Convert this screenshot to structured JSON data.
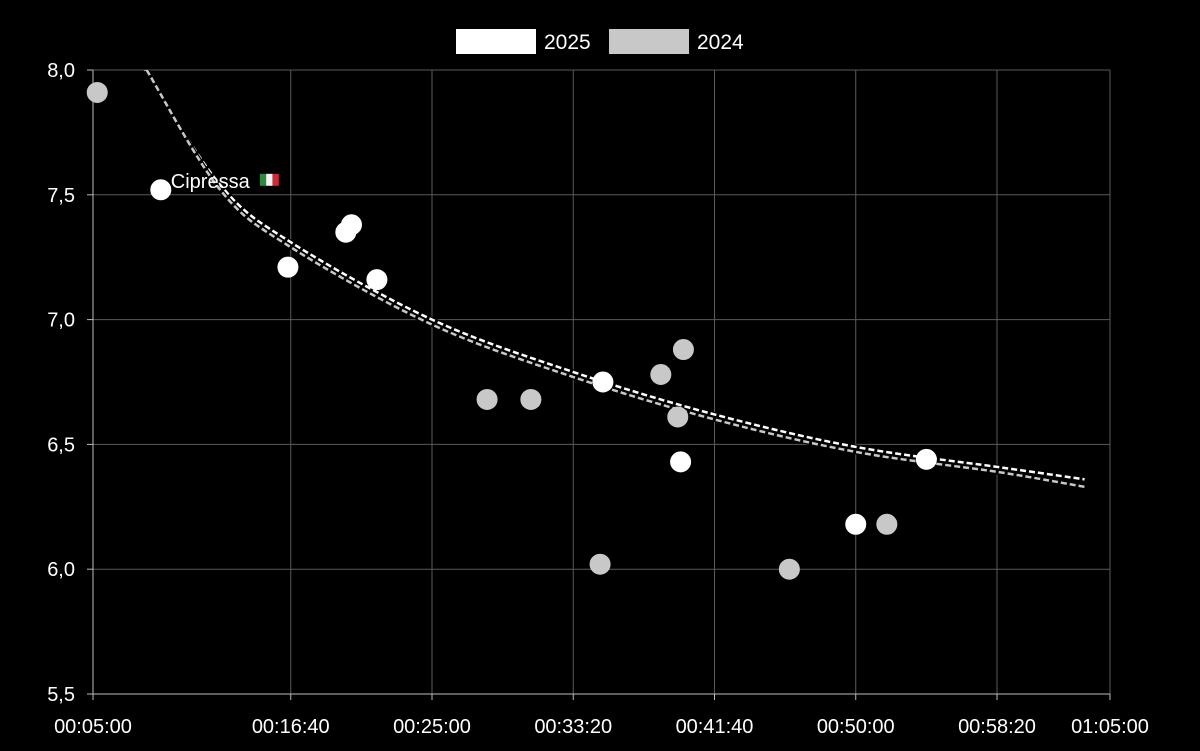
{
  "chart_data": {
    "type": "scatter",
    "title": "",
    "xlabel": "",
    "ylabel": "",
    "xlim": [
      "00:05:00",
      "01:05:00"
    ],
    "ylim": [
      5.5,
      8.0
    ],
    "x_ticks": [
      "00:05:00",
      "00:16:40",
      "00:25:00",
      "00:33:20",
      "00:41:40",
      "00:50:00",
      "00:58:20",
      "01:05:00"
    ],
    "y_ticks": [
      "5,5",
      "6,0",
      "6,5",
      "7,0",
      "7,5",
      "8,0"
    ],
    "grid": true,
    "legend_position": "top-center",
    "series": [
      {
        "name": "2025",
        "color": "#ffffff",
        "points": [
          {
            "x": "00:09:00",
            "y": 7.52,
            "label": "Cipressa",
            "flag": "italy-flag-icon"
          },
          {
            "x": "00:16:30",
            "y": 7.21
          },
          {
            "x": "00:19:55",
            "y": 7.35
          },
          {
            "x": "00:20:15",
            "y": 7.38
          },
          {
            "x": "00:21:45",
            "y": 7.16
          },
          {
            "x": "00:35:05",
            "y": 6.75
          },
          {
            "x": "00:39:40",
            "y": 6.43
          },
          {
            "x": "00:50:00",
            "y": 6.18
          },
          {
            "x": "00:54:10",
            "y": 6.44
          }
        ]
      },
      {
        "name": "2024",
        "color": "#c8c8c8",
        "points": [
          {
            "x": "00:05:15",
            "y": 7.91
          },
          {
            "x": "00:28:15",
            "y": 6.68
          },
          {
            "x": "00:30:50",
            "y": 6.68
          },
          {
            "x": "00:34:55",
            "y": 6.02
          },
          {
            "x": "00:38:30",
            "y": 6.78
          },
          {
            "x": "00:39:30",
            "y": 6.61
          },
          {
            "x": "00:39:50",
            "y": 6.88
          },
          {
            "x": "00:46:05",
            "y": 6.0
          },
          {
            "x": "00:51:50",
            "y": 6.18
          }
        ]
      }
    ],
    "trend_lines": [
      {
        "name": "2025",
        "style": "dashed",
        "color": "#ffffff",
        "points": [
          {
            "x": "00:08:05",
            "y": 8.0
          },
          {
            "x": "00:12:30",
            "y": 7.54
          },
          {
            "x": "00:16:40",
            "y": 7.31
          },
          {
            "x": "00:25:00",
            "y": 7.0
          },
          {
            "x": "00:33:20",
            "y": 6.79
          },
          {
            "x": "00:41:40",
            "y": 6.62
          },
          {
            "x": "00:50:00",
            "y": 6.49
          },
          {
            "x": "00:58:20",
            "y": 6.41
          },
          {
            "x": "01:03:30",
            "y": 6.36
          }
        ]
      },
      {
        "name": "2024",
        "style": "dashed",
        "color": "#c8c8c8",
        "points": [
          {
            "x": "00:08:10",
            "y": 8.0
          },
          {
            "x": "00:12:30",
            "y": 7.52
          },
          {
            "x": "00:16:40",
            "y": 7.29
          },
          {
            "x": "00:25:00",
            "y": 6.98
          },
          {
            "x": "00:33:20",
            "y": 6.77
          },
          {
            "x": "00:41:40",
            "y": 6.6
          },
          {
            "x": "00:50:00",
            "y": 6.47
          },
          {
            "x": "00:58:20",
            "y": 6.39
          },
          {
            "x": "01:03:30",
            "y": 6.33
          }
        ]
      }
    ]
  }
}
